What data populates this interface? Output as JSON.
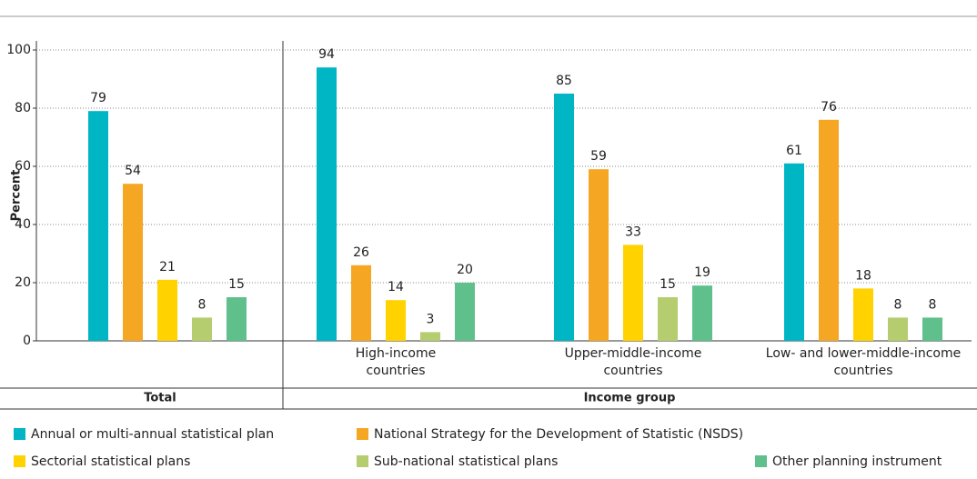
{
  "chart_data": {
    "type": "bar",
    "y_label": "Percent",
    "categories": [
      null,
      "High-income countries",
      "Upper-middle-income countries",
      "Low- and lower-middle-income countries"
    ],
    "groups": [
      "Total",
      "Income group"
    ],
    "series": [
      {
        "name": "Annual or multi-annual statistical plan",
        "color": "#00b5c4",
        "values": [
          79,
          94,
          85,
          61
        ]
      },
      {
        "name": "National Strategy for the Development of Statistic (NSDS)",
        "color": "#f5a623",
        "values": [
          54,
          26,
          59,
          76
        ]
      },
      {
        "name": "Sectorial statistical plans",
        "color": "#ffd200",
        "values": [
          21,
          14,
          33,
          18
        ]
      },
      {
        "name": "Sub-national statistical plans",
        "color": "#b5cc6f",
        "values": [
          8,
          3,
          15,
          8
        ]
      },
      {
        "name": "Other planning instrument",
        "color": "#5fc08b",
        "values": [
          15,
          20,
          19,
          8
        ]
      }
    ],
    "ylim": [
      0,
      100
    ],
    "yticks": [
      0,
      20,
      40,
      60,
      80,
      100
    ],
    "grid": true
  }
}
